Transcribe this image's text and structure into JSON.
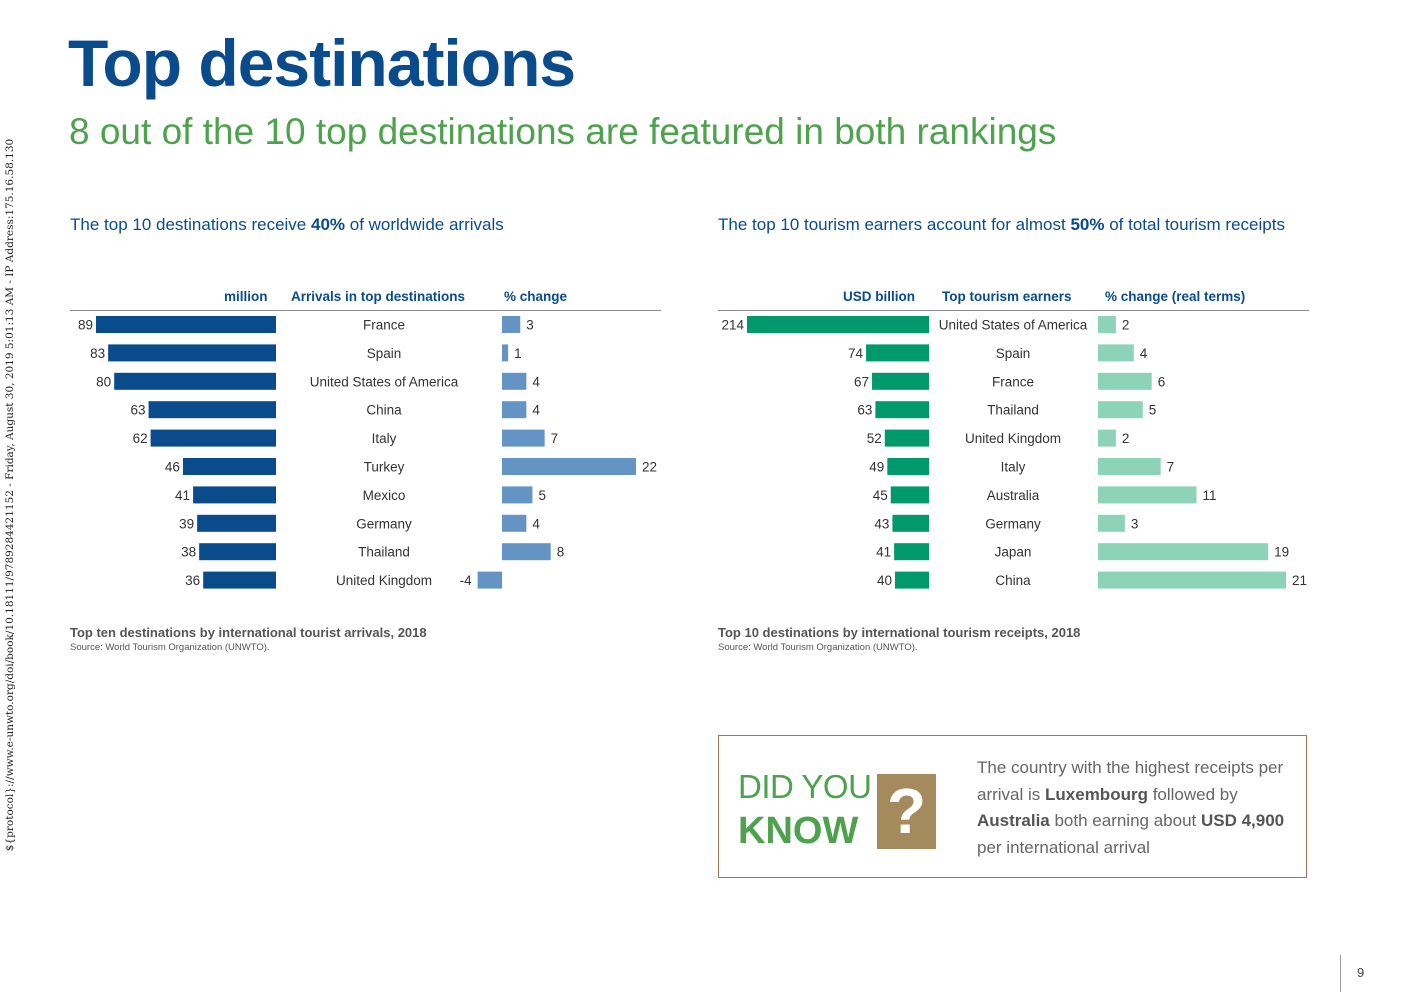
{
  "side_note": "${protocol}://www.e-unwto.org/doi/book/10.18111/9789284421152 - Friday, August 30, 2019 5:01:13 AM - IP Address:175.16.58.130",
  "title": "Top destinations",
  "subtitle": "8 out of the 10 top destinations are featured in both rankings",
  "colors": {
    "title": "#0a4b8c",
    "subtitle": "#4ea24e",
    "arrivals_bar": "#0a4b8c",
    "arrivals_change_bar": "#6394c4",
    "receipts_bar": "#00996b",
    "receipts_change_bar": "#8cd3b8",
    "did_you_know_border": "#a0765a",
    "did_you_know_icon": "#a58a5e"
  },
  "left_panel": {
    "heading_pre": "The top 10 destinations receive ",
    "heading_bold": "40%",
    "heading_post": " of worldwide arrivals",
    "col_value": "million",
    "col_label": "Arrivals in top destinations",
    "col_change": "% change",
    "caption": "Top ten destinations by international tourist arrivals, 2018",
    "source": "Source: World Tourism Organization (UNWTO)."
  },
  "right_panel": {
    "heading_pre": "The top 10 tourism earners account for almost ",
    "heading_bold": "50%",
    "heading_post": " of total tourism receipts",
    "col_value": "USD billion",
    "col_label": "Top tourism earners",
    "col_change": "% change (real terms)",
    "caption": "Top 10 destinations by international tourism receipts, 2018",
    "source": "Source: World Tourism Organization (UNWTO)."
  },
  "chart_data": [
    {
      "type": "bar",
      "title": "Top ten destinations by international tourist arrivals, 2018",
      "categories": [
        "France",
        "Spain",
        "United States of America",
        "China",
        "Italy",
        "Turkey",
        "Mexico",
        "Germany",
        "Thailand",
        "United Kingdom"
      ],
      "series": [
        {
          "name": "million",
          "values": [
            89,
            83,
            80,
            63,
            62,
            46,
            41,
            39,
            38,
            36
          ]
        },
        {
          "name": "% change",
          "values": [
            3,
            1,
            4,
            4,
            7,
            22,
            5,
            4,
            8,
            -4
          ]
        }
      ]
    },
    {
      "type": "bar",
      "title": "Top 10 destinations by international tourism receipts, 2018",
      "categories": [
        "United States of America",
        "Spain",
        "France",
        "Thailand",
        "United Kingdom",
        "Italy",
        "Australia",
        "Germany",
        "Japan",
        "China"
      ],
      "series": [
        {
          "name": "USD billion",
          "values": [
            214,
            74,
            67,
            63,
            52,
            49,
            45,
            43,
            41,
            40
          ]
        },
        {
          "name": "% change (real terms)",
          "values": [
            2,
            4,
            6,
            5,
            2,
            7,
            11,
            3,
            19,
            21
          ]
        }
      ]
    }
  ],
  "did_you_know": {
    "line1": "DID YOU",
    "line2": "KNOW",
    "icon": "question-mark-icon",
    "icon_glyph": "?",
    "text_1": "The country with the highest receipts per arrival is ",
    "text_bold_1": "Luxembourg",
    "text_2": " followed by ",
    "text_bold_2": "Australia",
    "text_3": " both earning about ",
    "text_bold_3": "USD 4,900",
    "text_4": " per international arrival"
  },
  "page_number": "9"
}
